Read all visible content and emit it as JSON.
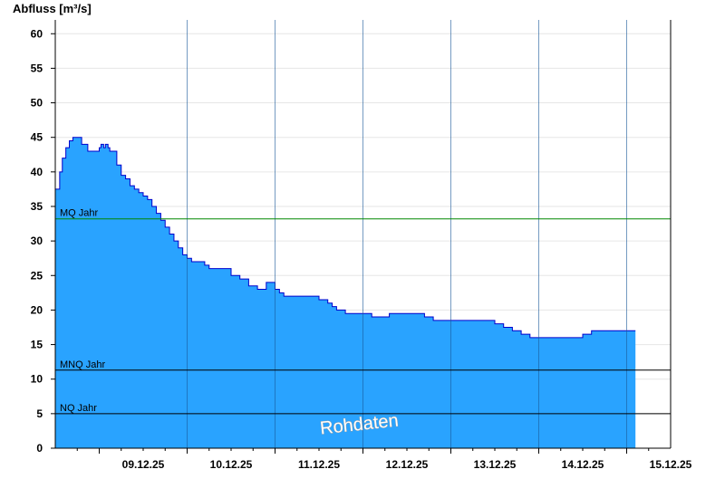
{
  "chart_data": {
    "type": "area",
    "ylabel": "Abfluss [m³/s]",
    "xlabel": "",
    "title": "",
    "ylim": [
      0,
      62
    ],
    "yticks": [
      0,
      5,
      10,
      15,
      20,
      25,
      30,
      35,
      40,
      45,
      50,
      55,
      60
    ],
    "x_start": "08.12.25 12:00",
    "xlim_days": [
      0,
      7
    ],
    "xticks": [
      "09.12.25",
      "10.12.25",
      "11.12.25",
      "12.12.25",
      "13.12.25",
      "14.12.25",
      "15.12.25"
    ],
    "grid": true,
    "series": [
      {
        "x_days": [
          0.0,
          0.05,
          0.08,
          0.12,
          0.16,
          0.2,
          0.25,
          0.3,
          0.37,
          0.45,
          0.5,
          0.52,
          0.55,
          0.57,
          0.6,
          0.62,
          0.65,
          0.7,
          0.75,
          0.8,
          0.85,
          0.9,
          0.95,
          1.0,
          1.05,
          1.1,
          1.15,
          1.2,
          1.25,
          1.3,
          1.35,
          1.4,
          1.45,
          1.5,
          1.55,
          1.6,
          1.65,
          1.7,
          1.75,
          1.8,
          1.9,
          2.0,
          2.1,
          2.2,
          2.3,
          2.4,
          2.5,
          2.55,
          2.6,
          2.65,
          2.7,
          2.8,
          2.9,
          3.0,
          3.1,
          3.15,
          3.2,
          3.3,
          3.4,
          3.5,
          3.6,
          3.7,
          3.75,
          3.8,
          4.0,
          4.2,
          4.3,
          4.4,
          4.5,
          4.6,
          4.8,
          5.0,
          5.1,
          5.2,
          5.3,
          5.4,
          5.5,
          5.6,
          5.8,
          6.0,
          6.1,
          6.2,
          6.3,
          6.4,
          6.55,
          6.6
        ],
        "values": [
          37.5,
          40.0,
          42.0,
          43.5,
          44.5,
          45.0,
          45.0,
          44.0,
          43.0,
          43.0,
          43.5,
          44.0,
          43.5,
          44.0,
          43.5,
          43.0,
          43.0,
          41.0,
          39.5,
          39.0,
          38.0,
          37.5,
          37.0,
          36.5,
          36.0,
          35.0,
          34.0,
          33.0,
          32.0,
          31.0,
          30.0,
          29.0,
          28.0,
          27.5,
          27.0,
          27.0,
          27.0,
          26.5,
          26.0,
          26.0,
          26.0,
          25.0,
          24.5,
          23.5,
          23.0,
          24.0,
          23.0,
          22.5,
          22.0,
          22.0,
          22.0,
          22.0,
          22.0,
          21.5,
          21.0,
          20.5,
          20.0,
          19.5,
          19.5,
          19.5,
          19.0,
          19.0,
          19.0,
          19.5,
          19.5,
          19.0,
          18.5,
          18.5,
          18.5,
          18.5,
          18.5,
          18.0,
          17.5,
          17.0,
          16.5,
          16.0,
          16.0,
          16.0,
          16.0,
          16.5,
          17.0,
          17.0,
          17.0,
          17.0,
          17.0,
          17.0
        ]
      }
    ],
    "reference_lines": [
      {
        "label": "MQ Jahr",
        "value": 33.2
      },
      {
        "label": "MNQ Jahr",
        "value": 11.3
      },
      {
        "label": "NQ Jahr",
        "value": 5.0
      }
    ],
    "watermark": "Rohdaten",
    "colors": {
      "area_fill": "#29a3ff",
      "area_line": "#0000cc",
      "mq_line": "#008800",
      "ref_line": "#000000",
      "grid": "#e6e6e6"
    }
  }
}
